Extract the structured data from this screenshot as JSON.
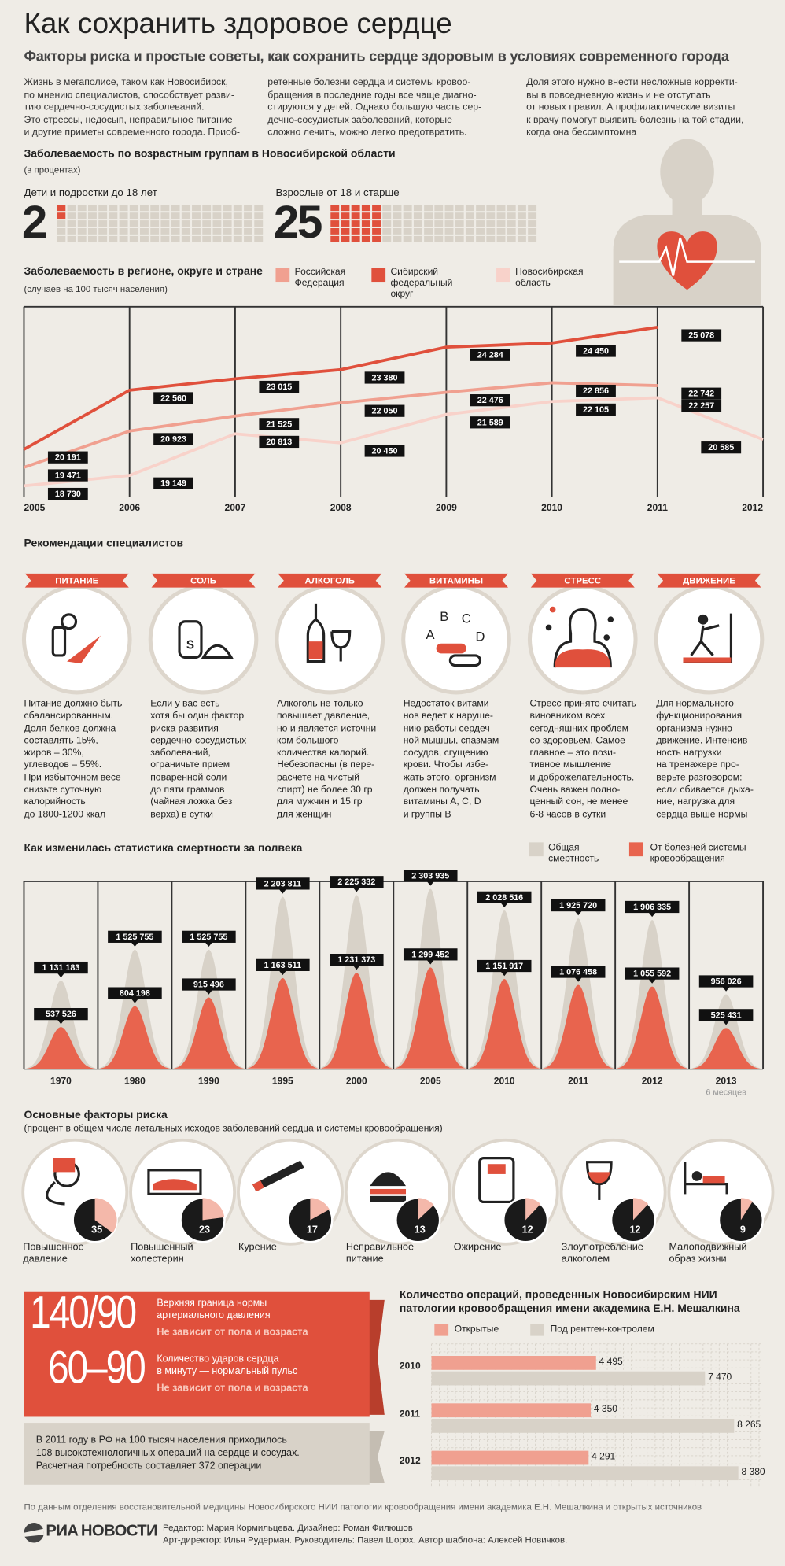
{
  "header": {
    "title": "Как сохранить здоровое сердце",
    "subtitle": "Факторы риска и простые советы, как сохранить сердце здоровым в условиях современного города"
  },
  "intro": [
    [
      "Жизнь в мегаполисе, таком как Новосибирск,",
      "по мнению специалистов, способствует разви-",
      "тию сердечно-сосудистых заболеваний.",
      "Это стрессы, недосып, неправильное питание",
      "и другие приметы современного города. Приоб-"
    ],
    [
      "ретенные болезни сердца и системы кровоо-",
      "бращения в последние годы все чаще диагно-",
      "стируются у детей. Однако большую часть сер-",
      "дечно-сосудистых заболеваний, которые",
      "сложно лечить, можно легко предотвратить."
    ],
    [
      "Доля этого нужно внести несложные корректи-",
      "вы в повседневную жизнь и не отступать",
      "от новых правил. А профилактические визиты",
      "к врачу помогут выявить болезнь на той стадии,",
      "когда она бессимптомна"
    ]
  ],
  "chart_data": [
    {
      "type": "waffle",
      "title": "Заболеваемость по возрастным группам в Новосибирской области",
      "subtitle": "(в процентах)",
      "categories": [
        "Дети и подростки до 18 лет",
        "Взрослые от 18 и старше"
      ],
      "values": [
        2,
        25
      ],
      "color": "#e0503c",
      "empty_color": "#d8d2c8"
    },
    {
      "type": "line",
      "title": "Заболеваемость в регионе, округе и стране",
      "subtitle": "(случаев на 100 тысяч населения)",
      "x": [
        2005,
        2006,
        2007,
        2008,
        2009,
        2010,
        2011,
        2012
      ],
      "xlim": [
        2005,
        2012
      ],
      "xticks": [
        2005,
        2006,
        2007,
        2008,
        2009,
        2010,
        2011,
        2012
      ],
      "ylim": [
        18300,
        25900
      ],
      "series": [
        {
          "name": "Российская Федерация",
          "color": "#f0a090",
          "values": [
            19471,
            20923,
            21525,
            22050,
            22476,
            22856,
            22742,
            null
          ],
          "value_labels": [
            "19 471",
            "20 923",
            "21 525",
            "22 050",
            "22 476",
            "22 856",
            "22 742",
            null
          ]
        },
        {
          "name": "Сибирский федеральный округ",
          "color": "#e0503c",
          "values": [
            20191,
            22560,
            23015,
            23380,
            24284,
            24450,
            25078,
            null
          ],
          "value_labels": [
            "20 191",
            "22 560",
            "23 015",
            "23 380",
            "24 284",
            "24 450",
            "25 078",
            null
          ]
        },
        {
          "name": "Новосибирская область",
          "color": "#f8d2ca",
          "values": [
            18730,
            19149,
            20813,
            20450,
            21589,
            22105,
            22257,
            20585
          ],
          "value_labels": [
            "18 730",
            "19 149",
            "20 813",
            "20 450",
            "21 589",
            "22 105",
            "22 257",
            "20 585"
          ]
        }
      ]
    },
    {
      "type": "bell",
      "title": "Как изменилась статистика смертности за полвека",
      "categories": [
        "1970",
        "1980",
        "1990",
        "1995",
        "2000",
        "2005",
        "2010",
        "2011",
        "2012",
        "2013"
      ],
      "category_note": "6 месяцев",
      "ylim": [
        0,
        2400000
      ],
      "series": [
        {
          "name": "Общая смертность",
          "color": "#d8d2c8",
          "values": [
            1131183,
            1525755,
            1525755,
            2203811,
            2225332,
            2303935,
            2028516,
            1925720,
            1906335,
            956026
          ],
          "value_labels": [
            "1 131 183",
            "1 525 755",
            "1 525 755",
            "2 203 811",
            "2 225 332",
            "2 303 935",
            "2 028 516",
            "1 925 720",
            "1 906 335",
            "956 026"
          ]
        },
        {
          "name": "От болезней системы кровообращения",
          "color": "#e8644e",
          "values": [
            537526,
            804198,
            915496,
            1163511,
            1231373,
            1299452,
            1151917,
            1076458,
            1055592,
            525431
          ],
          "value_labels": [
            "537 526",
            "804 198",
            "915 496",
            "1 163 511",
            "1 231 373",
            "1 299 452",
            "1 151 917",
            "1 076 458",
            "1 055 592",
            "525 431"
          ]
        }
      ]
    },
    {
      "type": "pie",
      "title": "Основные факторы риска",
      "subtitle": "(процент в общем числе летальных исходов заболеваний сердца и системы кровообращения)",
      "categories": [
        "Повышенное давление",
        "Повышенный холестерин",
        "Курение",
        "Неправильное питание",
        "Ожирение",
        "Злоупотребление алкоголем",
        "Малоподвижный образ жизни"
      ],
      "values": [
        35,
        23,
        17,
        13,
        12,
        12,
        9
      ],
      "color": "#f4b8aa",
      "rest_color": "#1a1a1a"
    },
    {
      "type": "barh",
      "title": "Количество операций, проведенных Новосибирским НИИ патологии кровообращения имени академика Е.Н. Мешалкина",
      "categories": [
        "2010",
        "2011",
        "2012"
      ],
      "xlim": [
        0,
        8400
      ],
      "grid": true,
      "series": [
        {
          "name": "Открытые",
          "color": "#f0a090",
          "values": [
            4495,
            4350,
            4291
          ],
          "value_labels": [
            "4 495",
            "4 350",
            "4 291"
          ]
        },
        {
          "name": "Под рентген-контролем",
          "color": "#d8d2c8",
          "values": [
            7470,
            8265,
            8380
          ],
          "value_labels": [
            "7 470",
            "8 265",
            "8 380"
          ]
        }
      ]
    }
  ],
  "recommendations": {
    "title": "Рекомендации специалистов",
    "items": [
      {
        "label": "ПИТАНИЕ",
        "text": [
          "Питание должно быть",
          "сбалансированным.",
          "Доля белков должна",
          "составлять 15%,",
          "жиров – 30%,",
          "углеводов – 55%.",
          "При избыточном весе",
          "снизьте суточную",
          "калорийность",
          "до 1800-1200 ккал"
        ]
      },
      {
        "label": "СОЛЬ",
        "icon_text": "S",
        "text": [
          "Если у вас есть",
          "хотя бы один фактор",
          "риска развития",
          "сердечно-сосудистых",
          "заболеваний,",
          "ограничьте прием",
          "поваренной соли",
          "до пяти граммов",
          "(чайная ложка без",
          "верха) в сутки"
        ]
      },
      {
        "label": "АЛКОГОЛЬ",
        "text": [
          "Алкоголь не только",
          "повышает давление,",
          "но и является источни-",
          "ком большого",
          "количества калорий.",
          "Небезопасны (в пере-",
          "расчете на чистый",
          "спирт) не более 30 гр",
          "для мужчин и 15 гр",
          "для женщин"
        ]
      },
      {
        "label": "ВИТАМИНЫ",
        "icon_text": [
          "A",
          "B",
          "C",
          "D"
        ],
        "text": [
          "Недостаток витами-",
          "нов ведет к наруше-",
          "нию работы сердеч-",
          "ной мышцы, спазмам",
          "сосудов, сгущению",
          "крови. Чтобы избе-",
          "жать этого, организм",
          "должен получать",
          "витамины A, C, D",
          "и группы B"
        ]
      },
      {
        "label": "СТРЕСС",
        "text": [
          "Стресс принято считать",
          "виновником всех",
          "сегодняшних проблем",
          "со здоровьем. Самое",
          "главное – это пози-",
          "тивное мышление",
          "и доброжелательность.",
          "Очень важен полно-",
          "ценный сон, не менее",
          "6-8 часов в сутки"
        ]
      },
      {
        "label": "ДВИЖЕНИЕ",
        "text": [
          "Для нормального",
          "функционирования",
          "организма нужно",
          "движение. Интенсив-",
          "ность нагрузки",
          "на тренажере про-",
          "верьте разговором:",
          "если сбивается дыха-",
          "ние, нагрузка для",
          "сердца выше нормы"
        ]
      }
    ]
  },
  "norms": {
    "blocks": [
      {
        "value": "140/90",
        "text": [
          "Верхняя граница нормы",
          "артериального давления"
        ],
        "note": "Не зависит от пола и возраста"
      },
      {
        "value": "60–90",
        "text": [
          "Количество ударов сердца",
          "в минуту — нормальный пульс"
        ],
        "note": "Не зависит от пола и возраста"
      }
    ],
    "fact": [
      "В 2011 году в РФ на 100 тысяч населения приходилось",
      "108 высокотехнологичных операций на сердце и сосудах.",
      "Расчетная потребность составляет 372 операции"
    ]
  },
  "footer": {
    "source": "По данным отделения восстановительной медицины Новосибирского НИИ патологии кровообращения имени академика Е.Н. Мешалкина и открытых источников",
    "logo": [
      "РИА",
      "НОВОСТИ"
    ],
    "credits": [
      "Редактор: Мария Кормильцева. Дизайнер: Роман Филюшов",
      "Арт-директор: Илья Рудерман. Руководитель: Павел Шорох. Автор шаблона: Алексей Новичков."
    ]
  }
}
